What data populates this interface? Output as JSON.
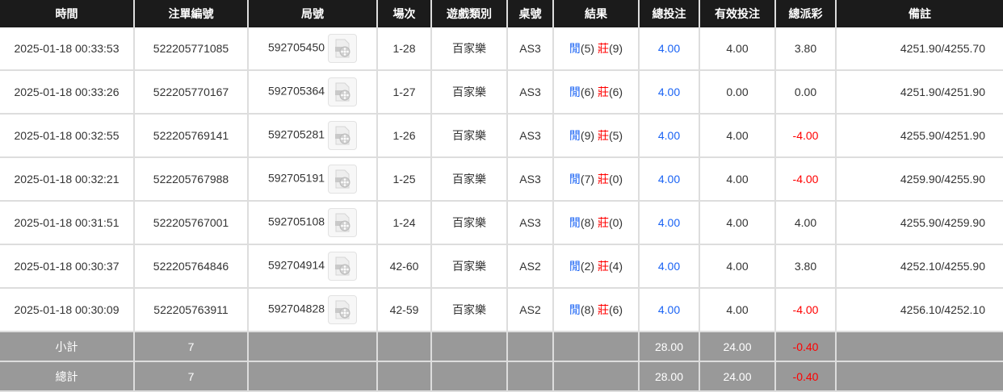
{
  "headers": [
    "時間",
    "注單編號",
    "局號",
    "場次",
    "遊戲類別",
    "桌號",
    "結果",
    "總投注",
    "有效投注",
    "總派彩",
    "備註"
  ],
  "rows": [
    {
      "time": "2025-01-18 00:33:53",
      "bet_id": "522205771085",
      "round": "592705450",
      "shoe": "1-28",
      "game": "百家樂",
      "table": "AS3",
      "player_label": "閒",
      "player": "(5)",
      "banker_label": "莊",
      "banker": "(9)",
      "total": "4.00",
      "valid": "4.00",
      "payout": "3.80",
      "note": "4251.90/4255.70"
    },
    {
      "time": "2025-01-18 00:33:26",
      "bet_id": "522205770167",
      "round": "592705364",
      "shoe": "1-27",
      "game": "百家樂",
      "table": "AS3",
      "player_label": "閒",
      "player": "(6)",
      "banker_label": "莊",
      "banker": "(6)",
      "total": "4.00",
      "valid": "0.00",
      "payout": "0.00",
      "note": "4251.90/4251.90"
    },
    {
      "time": "2025-01-18 00:32:55",
      "bet_id": "522205769141",
      "round": "592705281",
      "shoe": "1-26",
      "game": "百家樂",
      "table": "AS3",
      "player_label": "閒",
      "player": "(9)",
      "banker_label": "莊",
      "banker": "(5)",
      "total": "4.00",
      "valid": "4.00",
      "payout": "-4.00",
      "note": "4255.90/4251.90"
    },
    {
      "time": "2025-01-18 00:32:21",
      "bet_id": "522205767988",
      "round": "592705191",
      "shoe": "1-25",
      "game": "百家樂",
      "table": "AS3",
      "player_label": "閒",
      "player": "(7)",
      "banker_label": "莊",
      "banker": "(0)",
      "total": "4.00",
      "valid": "4.00",
      "payout": "-4.00",
      "note": "4259.90/4255.90"
    },
    {
      "time": "2025-01-18 00:31:51",
      "bet_id": "522205767001",
      "round": "592705108",
      "shoe": "1-24",
      "game": "百家樂",
      "table": "AS3",
      "player_label": "閒",
      "player": "(8)",
      "banker_label": "莊",
      "banker": "(0)",
      "total": "4.00",
      "valid": "4.00",
      "payout": "4.00",
      "note": "4255.90/4259.90"
    },
    {
      "time": "2025-01-18 00:30:37",
      "bet_id": "522205764846",
      "round": "592704914",
      "shoe": "42-60",
      "game": "百家樂",
      "table": "AS2",
      "player_label": "閒",
      "player": "(2)",
      "banker_label": "莊",
      "banker": "(4)",
      "total": "4.00",
      "valid": "4.00",
      "payout": "3.80",
      "note": "4252.10/4255.90"
    },
    {
      "time": "2025-01-18 00:30:09",
      "bet_id": "522205763911",
      "round": "592704828",
      "shoe": "42-59",
      "game": "百家樂",
      "table": "AS2",
      "player_label": "閒",
      "player": "(8)",
      "banker_label": "莊",
      "banker": "(6)",
      "total": "4.00",
      "valid": "4.00",
      "payout": "-4.00",
      "note": "4256.10/4252.10"
    }
  ],
  "subtotal": {
    "label": "小計",
    "count": "7",
    "total": "28.00",
    "valid": "24.00",
    "payout": "-0.40"
  },
  "grand_total": {
    "label": "總計",
    "count": "7",
    "total": "28.00",
    "valid": "24.00",
    "payout": "-0.40"
  },
  "colors": {
    "player": "#1a63f4",
    "banker": "#ff0000",
    "negative": "#ff0000",
    "header_bg": "#1b1b1b",
    "summary_bg": "#999999"
  },
  "icons": {
    "replay": "video-replay-icon"
  }
}
